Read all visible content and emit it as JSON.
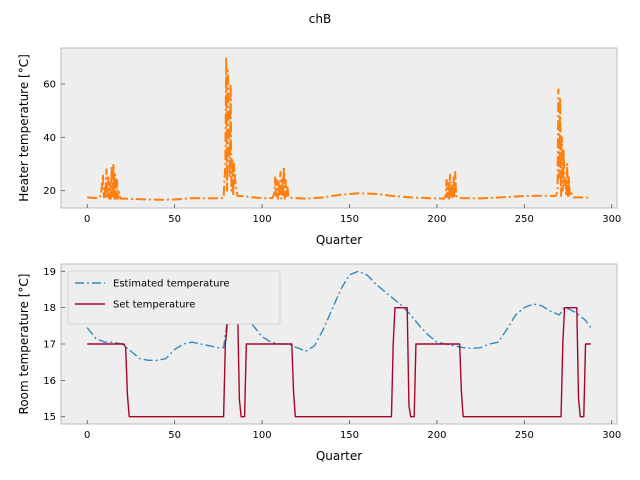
{
  "figure": {
    "title": "chB",
    "background": "#eeeeee"
  },
  "chart_data": [
    {
      "type": "line",
      "xlabel": "Quarter",
      "ylabel": "Heater temperature [°C]",
      "xlim": [
        -15,
        303
      ],
      "ylim": [
        13.5,
        73.5
      ],
      "xticks": [
        0,
        50,
        100,
        150,
        200,
        250,
        300
      ],
      "yticks": [
        20,
        40,
        60
      ],
      "grid": false,
      "legend": "none",
      "series": [
        {
          "color": "#ff7f0e",
          "style": "dashdot",
          "points": [
            [
              0,
              17.5
            ],
            [
              5,
              17.2
            ],
            [
              7,
              17.3
            ],
            [
              8,
              19
            ],
            [
              9,
              26
            ],
            [
              9.5,
              17.5
            ],
            [
              10,
              22
            ],
            [
              10.5,
              17
            ],
            [
              11,
              28
            ],
            [
              11.5,
              17
            ],
            [
              12,
              25
            ],
            [
              12.5,
              17
            ],
            [
              13,
              23
            ],
            [
              13.5,
              17
            ],
            [
              14,
              29
            ],
            [
              14.5,
              17
            ],
            [
              15,
              30
            ],
            [
              15.5,
              17
            ],
            [
              16,
              26
            ],
            [
              16.5,
              17
            ],
            [
              17,
              24
            ],
            [
              17.5,
              17
            ],
            [
              18,
              20
            ],
            [
              19,
              17
            ],
            [
              22,
              17
            ],
            [
              30,
              16.8
            ],
            [
              40,
              16.6
            ],
            [
              50,
              16.7
            ],
            [
              60,
              17.2
            ],
            [
              70,
              17.1
            ],
            [
              78,
              17.2
            ],
            [
              79,
              30
            ],
            [
              79.5,
              70
            ],
            [
              80,
              20
            ],
            [
              80.5,
              65
            ],
            [
              81,
              40
            ],
            [
              81.5,
              25
            ],
            [
              82,
              60
            ],
            [
              82.5,
              20
            ],
            [
              83,
              32
            ],
            [
              83.5,
              18
            ],
            [
              84,
              30
            ],
            [
              84.5,
              25
            ],
            [
              85,
              22
            ],
            [
              86,
              18
            ],
            [
              88,
              18
            ],
            [
              95,
              17.5
            ],
            [
              100,
              17.2
            ],
            [
              106,
              17.2
            ],
            [
              107,
              19
            ],
            [
              107.5,
              25
            ],
            [
              108,
              18
            ],
            [
              108.5,
              24
            ],
            [
              109,
              17
            ],
            [
              109.5,
              23
            ],
            [
              110,
              18
            ],
            [
              110.5,
              27
            ],
            [
              111,
              17
            ],
            [
              111.5,
              25
            ],
            [
              112,
              18
            ],
            [
              112.5,
              29
            ],
            [
              113,
              17
            ],
            [
              113.5,
              24
            ],
            [
              114,
              18
            ],
            [
              114.5,
              22
            ],
            [
              115,
              17.5
            ],
            [
              117,
              17.3
            ],
            [
              125,
              17
            ],
            [
              135,
              17.5
            ],
            [
              145,
              18.5
            ],
            [
              155,
              19
            ],
            [
              165,
              18.8
            ],
            [
              175,
              18
            ],
            [
              185,
              17.5
            ],
            [
              195,
              17.2
            ],
            [
              204,
              17
            ],
            [
              205,
              18
            ],
            [
              205.5,
              24
            ],
            [
              206,
              17.5
            ],
            [
              206.5,
              23
            ],
            [
              207,
              17
            ],
            [
              207.5,
              26
            ],
            [
              208,
              18
            ],
            [
              208.5,
              22
            ],
            [
              209,
              17
            ],
            [
              209.5,
              25
            ],
            [
              210,
              18
            ],
            [
              210.5,
              27
            ],
            [
              211,
              18
            ],
            [
              212,
              17.5
            ],
            [
              214,
              17.2
            ],
            [
              225,
              17.1
            ],
            [
              240,
              17.6
            ],
            [
              250,
              18
            ],
            [
              262,
              18.1
            ],
            [
              268,
              18
            ],
            [
              269,
              20
            ],
            [
              269.5,
              58
            ],
            [
              270,
              25
            ],
            [
              270.5,
              55
            ],
            [
              271,
              18
            ],
            [
              271.5,
              40
            ],
            [
              272,
              20
            ],
            [
              272.5,
              35
            ],
            [
              273,
              22
            ],
            [
              273.5,
              25
            ],
            [
              274,
              18
            ],
            [
              274.5,
              30
            ],
            [
              275,
              18
            ],
            [
              275.5,
              25
            ],
            [
              276,
              18
            ],
            [
              277,
              19
            ],
            [
              278,
              17.5
            ],
            [
              282,
              17.5
            ],
            [
              288,
              17.3
            ]
          ]
        }
      ]
    },
    {
      "type": "line",
      "xlabel": "Quarter",
      "ylabel": "Room temperature [°C]",
      "xlim": [
        -15,
        303
      ],
      "ylim": [
        14.8,
        19.2
      ],
      "xticks": [
        0,
        50,
        100,
        150,
        200,
        250,
        300
      ],
      "yticks": [
        15,
        16,
        17,
        18,
        19
      ],
      "grid": false,
      "legend": "upper-left",
      "series": [
        {
          "name": "Estimated temperature",
          "color": "#348abd",
          "style": "dashdot",
          "points": [
            [
              0,
              17.45
            ],
            [
              5,
              17.15
            ],
            [
              10,
              17.05
            ],
            [
              15,
              17.05
            ],
            [
              20,
              17.0
            ],
            [
              25,
              16.8
            ],
            [
              30,
              16.6
            ],
            [
              35,
              16.55
            ],
            [
              40,
              16.55
            ],
            [
              45,
              16.6
            ],
            [
              50,
              16.85
            ],
            [
              55,
              17.0
            ],
            [
              60,
              17.05
            ],
            [
              65,
              17.0
            ],
            [
              70,
              16.95
            ],
            [
              75,
              16.9
            ],
            [
              78,
              16.9
            ],
            [
              80,
              17.6
            ],
            [
              82,
              17.9
            ],
            [
              85,
              18.0
            ],
            [
              90,
              17.8
            ],
            [
              95,
              17.5
            ],
            [
              100,
              17.2
            ],
            [
              105,
              17.05
            ],
            [
              110,
              17.0
            ],
            [
              115,
              17.0
            ],
            [
              120,
              16.9
            ],
            [
              125,
              16.8
            ],
            [
              130,
              16.95
            ],
            [
              135,
              17.4
            ],
            [
              140,
              17.95
            ],
            [
              145,
              18.5
            ],
            [
              150,
              18.9
            ],
            [
              155,
              19.0
            ],
            [
              160,
              18.9
            ],
            [
              165,
              18.65
            ],
            [
              170,
              18.45
            ],
            [
              175,
              18.25
            ],
            [
              180,
              18.05
            ],
            [
              185,
              17.8
            ],
            [
              190,
              17.5
            ],
            [
              195,
              17.25
            ],
            [
              200,
              17.05
            ],
            [
              205,
              17.0
            ],
            [
              210,
              16.95
            ],
            [
              215,
              16.9
            ],
            [
              220,
              16.88
            ],
            [
              225,
              16.9
            ],
            [
              230,
              17.0
            ],
            [
              235,
              17.05
            ],
            [
              240,
              17.4
            ],
            [
              245,
              17.8
            ],
            [
              250,
              18.0
            ],
            [
              255,
              18.1
            ],
            [
              260,
              18.05
            ],
            [
              265,
              17.9
            ],
            [
              270,
              17.8
            ],
            [
              273,
              18.0
            ],
            [
              276,
              17.95
            ],
            [
              280,
              17.85
            ],
            [
              285,
              17.65
            ],
            [
              288,
              17.45
            ]
          ]
        },
        {
          "name": "Set temperature",
          "color": "#a60628",
          "style": "solid",
          "points": [
            [
              0,
              17
            ],
            [
              21,
              17
            ],
            [
              22,
              16.9
            ],
            [
              23,
              15.6
            ],
            [
              24,
              15
            ],
            [
              78,
              15
            ],
            [
              79,
              17
            ],
            [
              81,
              18
            ],
            [
              86,
              18
            ],
            [
              87,
              15.5
            ],
            [
              88,
              15
            ],
            [
              90,
              15
            ],
            [
              91,
              17
            ],
            [
              117,
              17
            ],
            [
              118,
              15.7
            ],
            [
              119,
              15
            ],
            [
              174,
              15
            ],
            [
              175,
              17
            ],
            [
              176,
              18
            ],
            [
              183,
              18
            ],
            [
              184,
              15.3
            ],
            [
              185,
              15
            ],
            [
              187,
              15
            ],
            [
              188,
              17
            ],
            [
              213,
              17
            ],
            [
              214,
              15.7
            ],
            [
              215,
              15
            ],
            [
              271,
              15
            ],
            [
              272,
              17
            ],
            [
              273,
              18
            ],
            [
              280,
              18
            ],
            [
              281,
              15.5
            ],
            [
              282,
              15
            ],
            [
              284,
              15
            ],
            [
              285,
              17
            ],
            [
              288,
              17
            ]
          ]
        }
      ]
    }
  ]
}
